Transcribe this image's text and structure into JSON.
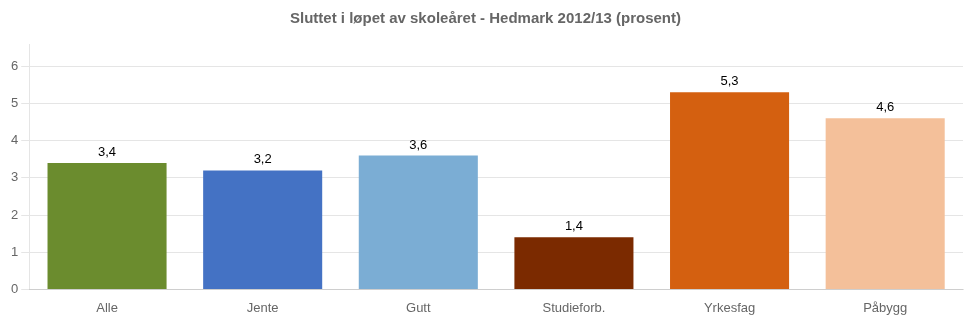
{
  "chart_data": {
    "type": "bar",
    "title": "Sluttet i løpet av skoleåret - Hedmark 2012/13 (prosent)",
    "categories": [
      "Alle",
      "Jente",
      "Gutt",
      "Studieforb.",
      "Yrkesfag",
      "Påbygg"
    ],
    "values": [
      3.4,
      3.2,
      3.6,
      1.4,
      5.3,
      4.6
    ],
    "value_labels": [
      "3,4",
      "3,2",
      "3,6",
      "1,4",
      "5,3",
      "4,6"
    ],
    "colors": [
      "#6b8c2e",
      "#4472c4",
      "#7badd4",
      "#7b2a00",
      "#d46010",
      "#f4c09a"
    ],
    "ylim": [
      0,
      6.6
    ],
    "yticks": [
      0,
      1,
      2,
      3,
      4,
      5,
      6
    ],
    "grid": true,
    "data_labels": true
  }
}
